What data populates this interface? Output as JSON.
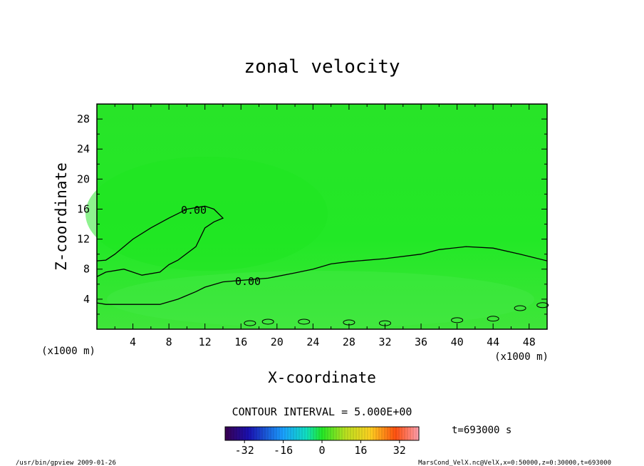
{
  "chart_data": {
    "type": "heatmap",
    "title": "zonal velocity",
    "xlabel": "X-coordinate",
    "ylabel": "Z-coordinate",
    "x_unit": "(x1000 m)",
    "y_unit": "(x1000 m)",
    "xlim": [
      0,
      50
    ],
    "ylim": [
      0,
      30
    ],
    "x_ticks": [
      "4",
      "8",
      "12",
      "16",
      "20",
      "24",
      "28",
      "32",
      "36",
      "40",
      "44",
      "48"
    ],
    "y_ticks": [
      "4",
      "8",
      "12",
      "16",
      "20",
      "24",
      "28"
    ],
    "contour_interval_text": "CONTOUR INTERVAL = 5.000E+00",
    "contour_labels": [
      "0.00",
      "0.00"
    ],
    "time_text": "t=693000 s",
    "colorbar_ticks": [
      "-32",
      "-16",
      "0",
      "16",
      "32"
    ],
    "colorbar_range": [
      -40,
      40
    ],
    "fill_color": "#22ee22",
    "footer_left": "/usr/bin/gpview  2009-01-26",
    "footer_right": "MarsCond_VelX.nc@VelX,x=0:50000,z=0:30000,t=693000",
    "contours": [
      {
        "name": "zero-contour-upper",
        "label": "0.00",
        "points": [
          [
            0,
            9.1
          ],
          [
            1,
            9.2
          ],
          [
            2,
            10
          ],
          [
            4,
            12
          ],
          [
            6,
            13.5
          ],
          [
            8,
            14.8
          ],
          [
            10,
            16
          ],
          [
            12,
            16.4
          ],
          [
            13,
            16
          ],
          [
            14,
            14.8
          ],
          [
            13,
            14.3
          ],
          [
            12,
            13.5
          ],
          [
            11,
            11
          ],
          [
            9,
            9.2
          ],
          [
            8,
            8.6
          ],
          [
            7,
            7.6
          ],
          [
            5,
            7.2
          ],
          [
            3,
            8
          ],
          [
            1,
            7.6
          ],
          [
            0,
            7
          ]
        ]
      },
      {
        "name": "zero-contour-lower",
        "label": "0.00",
        "points": [
          [
            0,
            3.5
          ],
          [
            1,
            3.3
          ],
          [
            3,
            3.3
          ],
          [
            7,
            3.3
          ],
          [
            9,
            4
          ],
          [
            11,
            5
          ],
          [
            12,
            5.6
          ],
          [
            14,
            6.3
          ],
          [
            16,
            6.5
          ],
          [
            19,
            6.8
          ],
          [
            22,
            7.5
          ],
          [
            24,
            8
          ],
          [
            26,
            8.7
          ],
          [
            28,
            9
          ],
          [
            32,
            9.4
          ],
          [
            36,
            10
          ],
          [
            38,
            10.6
          ],
          [
            41,
            11
          ],
          [
            44,
            10.8
          ],
          [
            47,
            10
          ],
          [
            50,
            9.1
          ]
        ]
      }
    ]
  }
}
